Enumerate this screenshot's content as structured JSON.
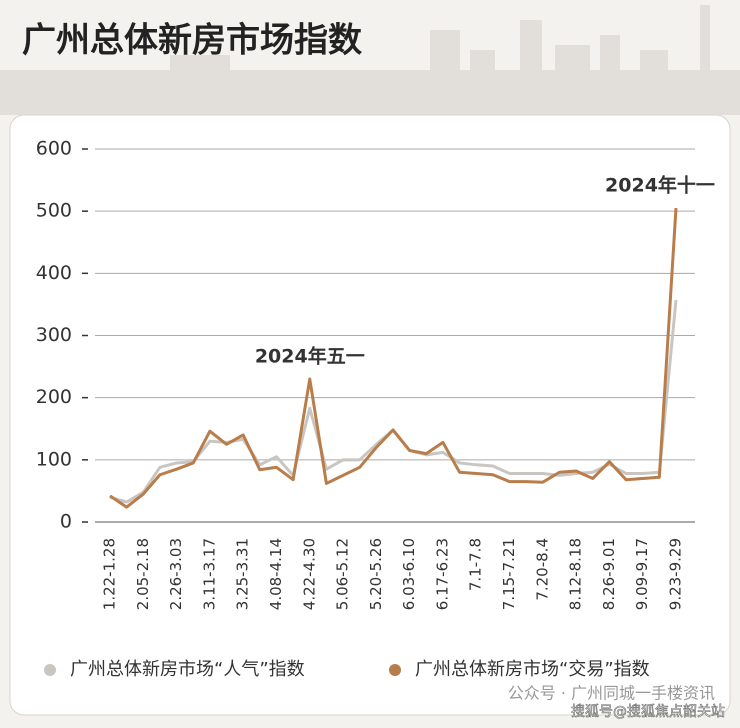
{
  "chart_data": {
    "type": "line",
    "title": "广州总体新房市场指数",
    "categories": [
      "1.22-1.28",
      null,
      "2.05-2.18",
      null,
      "2.26-3.03",
      null,
      "3.11-3.17",
      null,
      "3.25-3.31",
      null,
      "4.08-4.14",
      null,
      "4.22-4.30",
      null,
      "5.06-5.12",
      null,
      "5.20-5.26",
      null,
      "6.03-6.10",
      null,
      "6.17-6.23",
      null,
      "7.1-7.8",
      null,
      "7.15-7.21",
      null,
      "7.20-8.4",
      null,
      "8.12-8.18",
      null,
      "8.26-9.01",
      null,
      "9.09-9.17",
      null,
      "9.23-9.29"
    ],
    "series": [
      {
        "name": "广州总体新房市场“人气”指数",
        "color": "#c9c6c2",
        "values": [
          40,
          32,
          48,
          88,
          95,
          97,
          130,
          128,
          133,
          92,
          105,
          75,
          183,
          85,
          100,
          100,
          125,
          148,
          115,
          108,
          112,
          95,
          92,
          90,
          78,
          78,
          78,
          75,
          78,
          80,
          93,
          78,
          78,
          80,
          357
        ]
      },
      {
        "name": "广州总体新房市场“交易”指数",
        "color": "#b87d4b",
        "values": [
          42,
          24,
          45,
          76,
          85,
          95,
          146,
          125,
          140,
          84,
          88,
          68,
          230,
          62,
          75,
          88,
          120,
          148,
          115,
          110,
          128,
          80,
          78,
          76,
          65,
          65,
          64,
          80,
          82,
          70,
          97,
          68,
          70,
          72,
          505
        ]
      }
    ],
    "ylim": [
      0,
      600
    ],
    "yticks": [
      0,
      100,
      200,
      300,
      400,
      500,
      600
    ],
    "grid": true,
    "annotations": [
      {
        "text": "2024年五一",
        "index": 12
      },
      {
        "text": "2024年十一",
        "index": 34
      }
    ],
    "watermarks": [
      "公众号 · 广州同城一手楼资讯",
      "搜狐号@搜狐焦点韶关站"
    ]
  }
}
